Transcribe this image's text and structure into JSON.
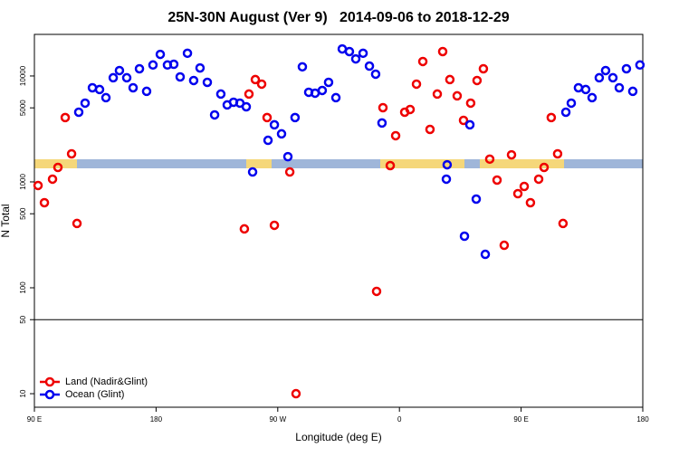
{
  "chart_data": {
    "type": "scatter",
    "title": "25N-30N August (Ver 9)   2014-09-06 to 2018-12-29",
    "x_label": "Longitude (deg E)",
    "y_label": "N Total",
    "log_scale_y": true,
    "legend": "bottom-left",
    "hline": 50,
    "xlim": [
      90,
      540
    ],
    "ylim": [
      7.45,
      24700
    ],
    "xticks": [
      {
        "value": 90,
        "label": "90 E"
      },
      180,
      {
        "value": 270,
        "label": "90 W"
      },
      {
        "value": 360,
        "label": "0"
      },
      {
        "value": 450,
        "label": "90 E"
      },
      {
        "value": 540,
        "label": "180"
      }
    ],
    "yticks": [
      10,
      50,
      100,
      500,
      1000,
      5000,
      10000
    ],
    "series": [
      {
        "name": "Land (Nadir&Glint)",
        "color": "#ee0000",
        "x": [
          92.7,
          97.4,
          103.4,
          107.4,
          112.8,
          117.5,
          121.5,
          245.3,
          248.7,
          253.4,
          258.1,
          262.1,
          267.5,
          278.9,
          283.5,
          343.1,
          347.8,
          353.2,
          357.2,
          363.9,
          367.9,
          372.6,
          377.3,
          382.6,
          388.0,
          392.0,
          397.3,
          402.7,
          407.4,
          412.7,
          417.4,
          422.1,
          426.8,
          432.2,
          437.5,
          442.9,
          447.6,
          452.3,
          456.9,
          463.0,
          467.0,
          472.3,
          477.0,
          481.0
        ],
        "values": [
          925,
          636,
          1061,
          1370,
          4050,
          1840,
          405,
          360,
          6750,
          9250,
          8380,
          4050,
          389,
          1240,
          10,
          92.5,
          5020,
          1425,
          2730,
          4550,
          4830,
          8380,
          13700,
          3130,
          6750,
          17000,
          9250,
          6490,
          3810,
          5540,
          9060,
          11700,
          1640,
          1040,
          252,
          1800,
          774,
          906,
          636,
          1061,
          1370,
          4050,
          1840,
          405
        ]
      },
      {
        "name": "Ocean (Glint)",
        "color": "#0000ee",
        "x": [
          122.8,
          127.5,
          132.9,
          138.2,
          142.9,
          148.3,
          152.9,
          158.3,
          163.0,
          167.7,
          173.0,
          177.7,
          183.1,
          188.4,
          193.1,
          197.8,
          203.2,
          207.8,
          212.5,
          217.9,
          223.3,
          227.9,
          232.6,
          237.3,
          242.0,
          246.7,
          251.4,
          262.8,
          267.5,
          272.8,
          277.5,
          282.8,
          288.2,
          292.9,
          297.6,
          302.9,
          307.6,
          313.0,
          317.7,
          323.0,
          327.7,
          333.1,
          337.8,
          342.4,
          347.1,
          395.3,
          394.7,
          408.1,
          412.1,
          416.8,
          423.5,
          483.1,
          487.1,
          492.4,
          497.8,
          502.5,
          507.8,
          512.5,
          517.9,
          522.6,
          527.9,
          532.6,
          537.9
        ],
        "values": [
          4550,
          5540,
          7740,
          7450,
          6240,
          9620,
          11250,
          9620,
          7740,
          11700,
          7160,
          12700,
          16000,
          12700,
          12900,
          9800,
          16400,
          9060,
          11900,
          8710,
          4290,
          6750,
          5330,
          5650,
          5540,
          5120,
          1240,
          2470,
          3460,
          2840,
          1730,
          4050,
          12200,
          7020,
          6880,
          7300,
          8710,
          6240,
          18000,
          17000,
          14500,
          16400,
          12400,
          10400,
          3600,
          1450,
          1061,
          307,
          3460,
          688,
          207,
          4550,
          5540,
          7740,
          7450,
          6240,
          9620,
          11250,
          9620,
          7740,
          11700,
          7160,
          12700
        ]
      }
    ]
  }
}
